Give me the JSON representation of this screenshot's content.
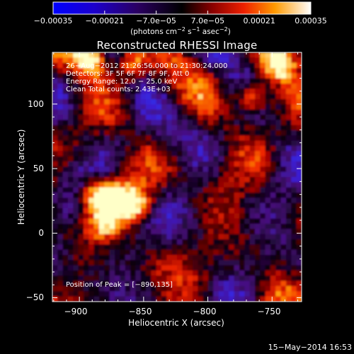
{
  "chart_data": {
    "type": "heatmap",
    "title": "Reconstructed RHESSI Image",
    "xlabel": "Heliocentric X (arcsec)",
    "ylabel": "Heliocentric Y (arcsec)",
    "xlim": [
      -921,
      -727
    ],
    "ylim": [
      -53,
      140
    ],
    "x_ticks": [
      -900,
      -850,
      -800,
      -750
    ],
    "x_tick_labels": [
      "−900",
      "−850",
      "−800",
      "−750"
    ],
    "y_ticks": [
      -50,
      0,
      50,
      100
    ],
    "y_tick_labels": [
      "−50",
      "0",
      "50",
      "100"
    ],
    "colorbar": {
      "range": [
        -0.00035,
        0.00035
      ],
      "ticks": [
        -0.00035,
        -0.00021,
        -7e-05,
        7e-05,
        0.00021,
        0.00035
      ],
      "tick_labels": [
        "−0.00035",
        "−0.00021",
        "−7.0e−05",
        "7.0e−05",
        "0.00021",
        "0.00035"
      ],
      "unit_base": "(photons cm",
      "unit_exp1": "−2",
      "unit_mid1": " s",
      "unit_exp2": "−1",
      "unit_mid2": " asec",
      "unit_exp3": "−2",
      "unit_end": ")"
    },
    "annotations": [
      "26−Aug−2012 21:26:56.000 to 21:30:24.000",
      "Detectors: 3F 5F 6F 7F 8F 9F, Att 0",
      "Energy Range: 12.0 − 25.0 keV",
      "Clean    Total counts: 2.43E+03"
    ],
    "peak_label": "Position of Peak = [−890,135]",
    "peak_position": [
      -890,
      135
    ],
    "bright_sources": [
      {
        "x": -885,
        "y": 30,
        "level": 1.0
      },
      {
        "x": -870,
        "y": 25,
        "level": 0.9
      },
      {
        "x": -855,
        "y": 22,
        "level": 0.75
      },
      {
        "x": -880,
        "y": 8,
        "level": 0.6
      },
      {
        "x": -765,
        "y": 105,
        "level": 1.0
      },
      {
        "x": -890,
        "y": 135,
        "level": 1.0
      },
      {
        "x": -860,
        "y": 132,
        "level": 0.9
      },
      {
        "x": -745,
        "y": 130,
        "level": 0.85
      }
    ]
  },
  "timestamp": "15−May−2014 16:53"
}
